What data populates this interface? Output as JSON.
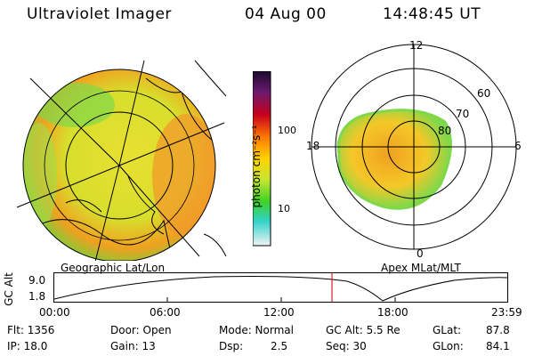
{
  "header": {
    "instrument": "Ultraviolet Imager",
    "date": "04 Aug 00",
    "time": "14:48:45 UT"
  },
  "colorbar": {
    "unit_label": "photon cm⁻²s⁻¹",
    "tick_100": "100",
    "tick_10": "10",
    "top_color": "#1a0a2e",
    "mid_colors": [
      "#b0002a",
      "#ff6a00",
      "#ffd200",
      "#c8e632",
      "#3cd228",
      "#32d2c8",
      "#e6f0f5"
    ]
  },
  "geo_panel": {
    "caption": "Geographic Lat/Lon"
  },
  "polar_panel": {
    "caption": "Apex MLat/MLT",
    "mlt_12": "12",
    "mlt_18": "18",
    "mlt_6": "6",
    "mlt_0": "0",
    "lat_60": "60",
    "lat_70": "70",
    "lat_80": "80"
  },
  "altitude_plot": {
    "ylabel": "GC Alt",
    "ytick_top": "9.0",
    "ytick_bottom": "1.8",
    "xticks": [
      "00:00",
      "06:00",
      "12:00",
      "18:00",
      "23:59"
    ],
    "marker_color": "#d42020"
  },
  "footer": {
    "flt": "Flt: 1356",
    "ip": "IP: 18.0",
    "door": "Door: Open",
    "gain": "Gain: 13",
    "mode": "Mode: Normal",
    "dsp_label": "Dsp:",
    "dsp_value": "2.5",
    "gcalt": "GC Alt: 5.5 Re",
    "seq": "Seq: 30",
    "glat_label": "GLat:",
    "glat_value": "87.8",
    "glon_label": "GLon:",
    "glon_value": "84.1"
  }
}
